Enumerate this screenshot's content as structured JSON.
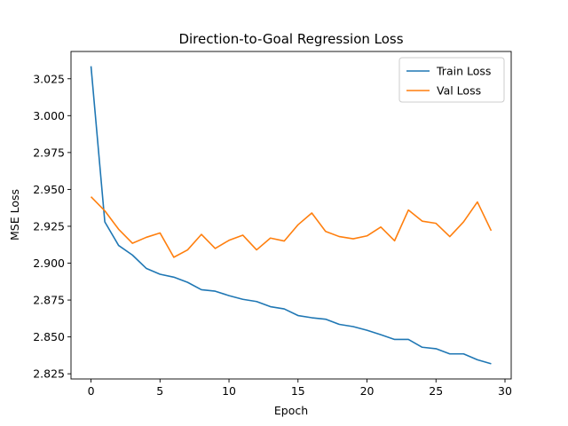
{
  "chart_data": {
    "type": "line",
    "title": "Direction-to-Goal Regression Loss",
    "xlabel": "Epoch",
    "ylabel": "MSE Loss",
    "xlim": [
      -1.45,
      30.45
    ],
    "ylim": [
      2.8215,
      3.0435
    ],
    "xticks": [
      0,
      5,
      10,
      15,
      20,
      25,
      30
    ],
    "yticks": [
      2.825,
      2.85,
      2.875,
      2.9,
      2.925,
      2.95,
      2.975,
      3.0,
      3.025
    ],
    "ytick_labels": [
      "2.825",
      "2.850",
      "2.875",
      "2.900",
      "2.925",
      "2.950",
      "2.975",
      "3.000",
      "3.025"
    ],
    "xtick_labels": [
      "0",
      "5",
      "10",
      "15",
      "20",
      "25",
      "30"
    ],
    "legend_position": "top-right",
    "grid": false,
    "x": [
      0,
      1,
      2,
      3,
      4,
      5,
      6,
      7,
      8,
      9,
      10,
      11,
      12,
      13,
      14,
      15,
      16,
      17,
      18,
      19,
      20,
      21,
      22,
      23,
      24,
      25,
      26,
      27,
      28,
      29
    ],
    "series": [
      {
        "name": "Train Loss",
        "color": "#1f77b4",
        "values": [
          3.0335,
          2.928,
          2.912,
          2.9055,
          2.8965,
          2.8925,
          2.8905,
          2.887,
          2.882,
          2.881,
          2.878,
          2.8755,
          2.874,
          2.8705,
          2.869,
          2.8645,
          2.863,
          2.862,
          2.8585,
          2.857,
          2.8545,
          2.8515,
          2.8483,
          2.8483,
          2.843,
          2.842,
          2.8385,
          2.8385,
          2.8345,
          2.8318
        ]
      },
      {
        "name": "Val Loss",
        "color": "#ff7f0e",
        "values": [
          2.945,
          2.9355,
          2.923,
          2.9135,
          2.9175,
          2.9205,
          2.904,
          2.909,
          2.9195,
          2.91,
          2.9155,
          2.919,
          2.909,
          2.917,
          2.915,
          2.926,
          2.934,
          2.9215,
          2.918,
          2.9165,
          2.9185,
          2.9245,
          2.9152,
          2.936,
          2.9285,
          2.927,
          2.918,
          2.928,
          2.9415,
          2.922
        ]
      }
    ]
  }
}
